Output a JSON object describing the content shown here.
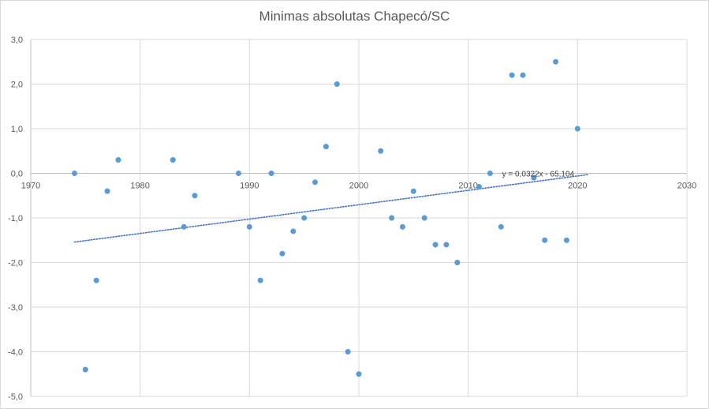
{
  "chart_data": {
    "type": "scatter",
    "title": "Minimas absolutas Chapecó/SC",
    "xlim": [
      1970,
      2030
    ],
    "ylim": [
      -5,
      3
    ],
    "xticks": [
      1970,
      1980,
      1990,
      2000,
      2010,
      2020,
      2030
    ],
    "xtick_labels": [
      "1970",
      "1980",
      "1990",
      "2000",
      "2010",
      "2020",
      "2030"
    ],
    "yticks": [
      3,
      2,
      1,
      0,
      -1,
      -2,
      -3,
      -4,
      -5
    ],
    "ytick_labels": [
      "3,0",
      "2,0",
      "1,0",
      "0,0",
      "-1,0",
      "-2,0",
      "-3,0",
      "-4,0",
      "-5,0"
    ],
    "grid": true,
    "marker_color": "#5b9bd5",
    "points": [
      {
        "x": 1974,
        "y": 0.0
      },
      {
        "x": 1975,
        "y": -4.4
      },
      {
        "x": 1976,
        "y": -2.4
      },
      {
        "x": 1977,
        "y": -0.4
      },
      {
        "x": 1978,
        "y": 0.3
      },
      {
        "x": 1983,
        "y": 0.3
      },
      {
        "x": 1984,
        "y": -1.2
      },
      {
        "x": 1985,
        "y": -0.5
      },
      {
        "x": 1989,
        "y": 0.0
      },
      {
        "x": 1990,
        "y": -1.2
      },
      {
        "x": 1991,
        "y": -2.4
      },
      {
        "x": 1992,
        "y": 0.0
      },
      {
        "x": 1993,
        "y": -1.8
      },
      {
        "x": 1994,
        "y": -1.3
      },
      {
        "x": 1995,
        "y": -1.0
      },
      {
        "x": 1996,
        "y": -0.2
      },
      {
        "x": 1997,
        "y": 0.6
      },
      {
        "x": 1998,
        "y": 2.0
      },
      {
        "x": 1999,
        "y": -4.0
      },
      {
        "x": 2000,
        "y": -4.5
      },
      {
        "x": 2002,
        "y": 0.5
      },
      {
        "x": 2003,
        "y": -1.0
      },
      {
        "x": 2004,
        "y": -1.2
      },
      {
        "x": 2005,
        "y": -0.4
      },
      {
        "x": 2006,
        "y": -1.0
      },
      {
        "x": 2007,
        "y": -1.6
      },
      {
        "x": 2008,
        "y": -1.6
      },
      {
        "x": 2009,
        "y": -2.0
      },
      {
        "x": 2011,
        "y": -0.3
      },
      {
        "x": 2012,
        "y": 0.0
      },
      {
        "x": 2013,
        "y": -1.2
      },
      {
        "x": 2014,
        "y": 2.2
      },
      {
        "x": 2015,
        "y": 2.2
      },
      {
        "x": 2016,
        "y": -0.1
      },
      {
        "x": 2017,
        "y": -1.5
      },
      {
        "x": 2018,
        "y": 2.5
      },
      {
        "x": 2019,
        "y": -1.5
      },
      {
        "x": 2020,
        "y": 1.0
      }
    ],
    "trendline": {
      "type": "linear",
      "slope": 0.0322,
      "intercept": -65.104,
      "x_range": [
        1974,
        2021
      ],
      "equation_label": "y = 0,0322x - 65,104",
      "color": "#4472c4",
      "style": "dotted"
    }
  }
}
